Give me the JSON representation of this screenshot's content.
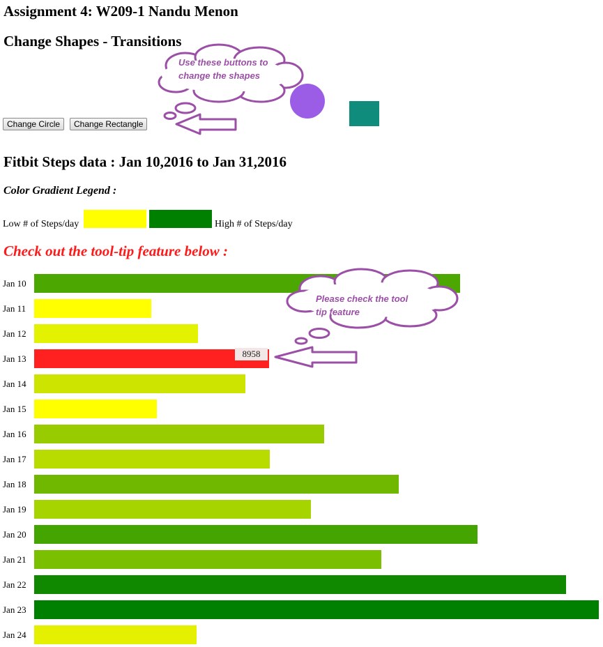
{
  "header": {
    "title": "Assignment 4: W209-1 Nandu Menon",
    "subtitle": "Change Shapes - Transitions"
  },
  "shapes_callout": {
    "line1": "Use these buttons to",
    "line2": "change the shapes"
  },
  "buttons": {
    "change_circle": "Change Circle",
    "change_rectangle": "Change Rectangle"
  },
  "shapes": {
    "circle_color": "#9b5de5",
    "rect_color": "#0f8c7b"
  },
  "fitbit": {
    "heading": "Fitbit Steps data : Jan 10,2016 to Jan 31,2016",
    "legend_title": "Color Gradient Legend :",
    "legend_low": "Low # of Steps/day",
    "legend_high": "High # of Steps/day",
    "legend_low_color": "#ffff00",
    "legend_high_color": "#008000",
    "check_tooltip": "Check out the tool-tip feature below :"
  },
  "tooltip_callout": {
    "line1": "Please check the tool",
    "line2": "tip feature"
  },
  "tooltip": {
    "value": "8958"
  },
  "chart_data": {
    "type": "bar",
    "orientation": "horizontal",
    "categories": [
      "Jan 10",
      "Jan 11",
      "Jan 12",
      "Jan 13",
      "Jan 14",
      "Jan 15",
      "Jan 16",
      "Jan 17",
      "Jan 18",
      "Jan 19",
      "Jan 20",
      "Jan 21",
      "Jan 22",
      "Jan 23",
      "Jan 24"
    ],
    "values": [
      16250,
      4480,
      6240,
      8958,
      8050,
      4680,
      11070,
      8980,
      13900,
      10560,
      16900,
      13230,
      20300,
      21540,
      6200
    ],
    "colors": [
      "#4ca800",
      "#ffff00",
      "#e3f200",
      "#ff2020",
      "#cce400",
      "#ffff00",
      "#99cc00",
      "#b8dc00",
      "#70b800",
      "#a5d400",
      "#45a500",
      "#7ac000",
      "#108800",
      "#008000",
      "#e5f000"
    ],
    "highlighted": "Jan 13",
    "xlim": [
      0,
      21540
    ]
  }
}
